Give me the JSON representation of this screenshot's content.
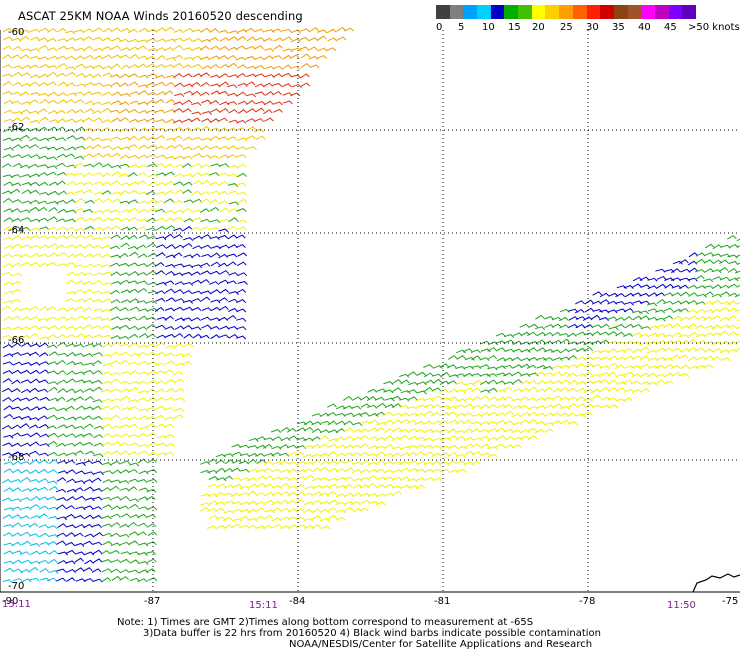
{
  "title": "ASCAT 25KM NOAA Winds 20160520 descending",
  "color_scale": {
    "colors": [
      "#404040",
      "#7f7f7f",
      "#00a0ff",
      "#00d0ff",
      "#0000c8",
      "#00b000",
      "#40c000",
      "#ffff00",
      "#ffd000",
      "#ffa000",
      "#ff6000",
      "#ff2000",
      "#d00000",
      "#8b4513",
      "#a0522d",
      "#ff00ff",
      "#c000c0",
      "#8000ff",
      "#6000c0"
    ],
    "labels": [
      "0",
      "5",
      "10",
      "15",
      "20",
      "25",
      "30",
      "35",
      "40",
      "45",
      ">50 knots"
    ]
  },
  "map": {
    "lon_labels": [
      "-90",
      "-87",
      "-84",
      "-81",
      "-78",
      "-75"
    ],
    "lat_labels": [
      "-60",
      "-62",
      "-64",
      "-66",
      "-68",
      "-70"
    ],
    "time_labels": [
      "15:11",
      "15:11",
      "11:50"
    ]
  },
  "notes": {
    "line1": "Note: 1) Times are GMT 2)Times along bottom correspond to measurement at -65S",
    "line2": "3)Data buffer is 22 hrs from 20160520 4) Black wind barbs indicate possible contamination",
    "line3": "NOAA/NESDIS/Center for Satellite Applications and Research"
  }
}
